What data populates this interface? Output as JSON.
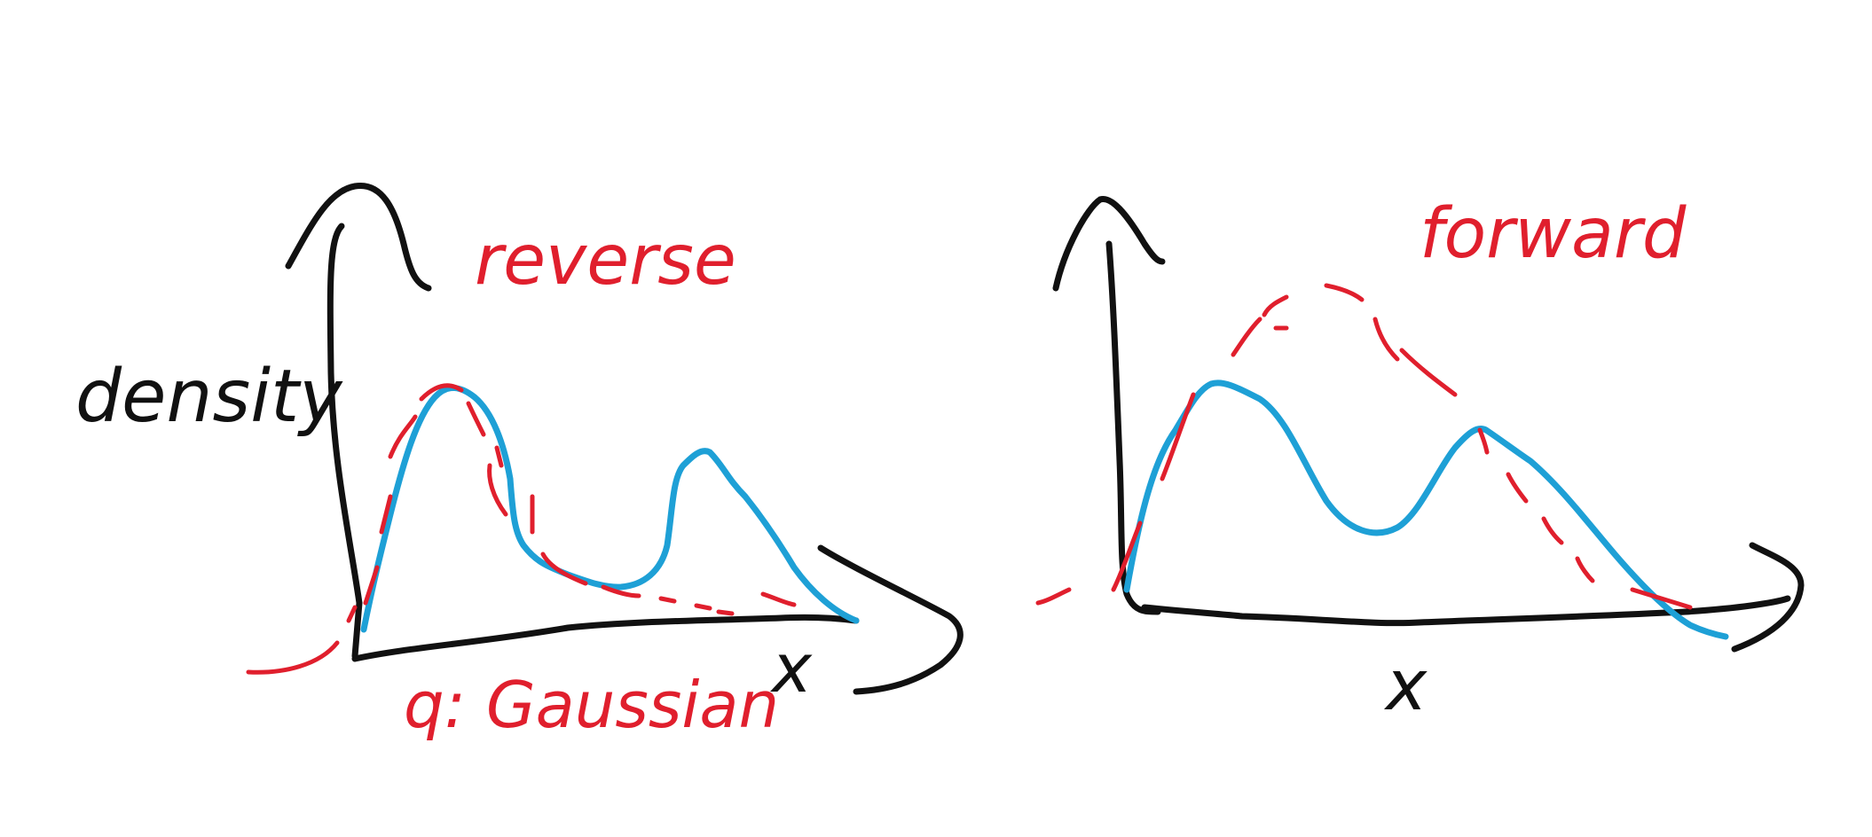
{
  "colors": {
    "ink_black": "#111111",
    "ink_blue": "#1ea0d6",
    "ink_red": "#e01f2d",
    "background": "#ffffff"
  },
  "left_panel": {
    "ylabel": "density",
    "xlabel": "x",
    "annotation_top": "reverse",
    "annotation_bottom": "q: Gaussian"
  },
  "right_panel": {
    "xlabel": "x",
    "annotation_top": "forward"
  }
}
